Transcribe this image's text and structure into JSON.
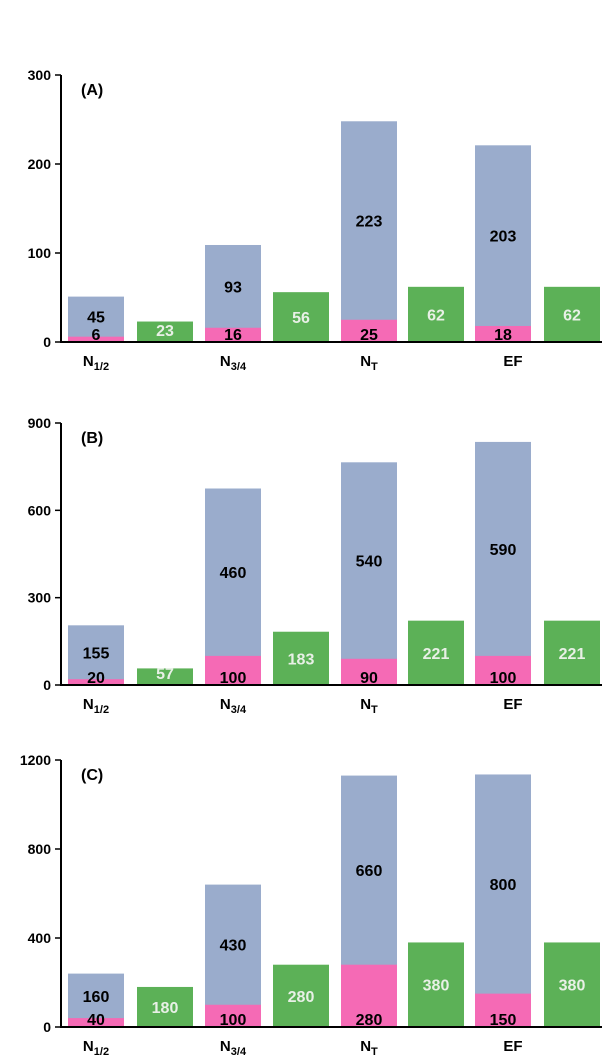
{
  "colors": {
    "total": "#9aaccc",
    "bottom": "#f56ab5",
    "green": "#5cb157",
    "axis": "#000000",
    "lightText": "#e8f0e6",
    "darkText": "#000000"
  },
  "chart_data": [
    {
      "type": "bar",
      "title": "(A)",
      "categories": [
        {
          "main": "N",
          "sub": "1/2"
        },
        {
          "main": "N",
          "sub": "3/4"
        },
        {
          "main": "N",
          "sub": "T"
        },
        {
          "main": "EF",
          "sub": ""
        }
      ],
      "yticks": [
        "0",
        "100",
        "200",
        "300"
      ],
      "ylim": [
        0,
        300
      ],
      "series": [
        {
          "values": [
            45,
            93,
            223,
            203
          ],
          "labels": [
            "45",
            "93",
            "223",
            "203"
          ]
        },
        {
          "values": [
            6,
            16,
            25,
            18
          ],
          "labels": [
            "6",
            "16",
            "25",
            "18"
          ]
        },
        {
          "values": [
            23,
            56,
            62,
            62
          ],
          "labels": [
            "23",
            "56",
            "62",
            "62"
          ]
        }
      ],
      "bar_tops": [
        51,
        109,
        248,
        221
      ]
    },
    {
      "type": "bar",
      "title": "(B)",
      "categories": [
        {
          "main": "N",
          "sub": "1/2"
        },
        {
          "main": "N",
          "sub": "3/4"
        },
        {
          "main": "N",
          "sub": "T"
        },
        {
          "main": "EF",
          "sub": ""
        }
      ],
      "yticks": [
        "0",
        "300",
        "600",
        "900"
      ],
      "ylim": [
        0,
        900
      ],
      "series": [
        {
          "values": [
            155,
            460,
            540,
            590
          ],
          "labels": [
            "155",
            "460",
            "540",
            "590"
          ]
        },
        {
          "values": [
            20,
            100,
            90,
            100
          ],
          "labels": [
            "20",
            "100",
            "90",
            "100"
          ]
        },
        {
          "values": [
            57,
            183,
            221,
            221
          ],
          "labels": [
            "57",
            "183",
            "221",
            "221"
          ]
        }
      ],
      "bar_tops": [
        205,
        675,
        765,
        835
      ]
    },
    {
      "type": "bar",
      "title": "(C)",
      "categories": [
        {
          "main": "N",
          "sub": "1/2"
        },
        {
          "main": "N",
          "sub": "3/4"
        },
        {
          "main": "N",
          "sub": "T"
        },
        {
          "main": "EF",
          "sub": ""
        }
      ],
      "yticks": [
        "0",
        "400",
        "800",
        "1200"
      ],
      "ylim": [
        0,
        1200
      ],
      "series": [
        {
          "values": [
            160,
            430,
            660,
            800
          ],
          "labels": [
            "160",
            "430",
            "660",
            "800"
          ]
        },
        {
          "values": [
            40,
            100,
            280,
            150
          ],
          "labels": [
            "40",
            "100",
            "280",
            "150"
          ]
        },
        {
          "values": [
            180,
            280,
            380,
            380
          ],
          "labels": [
            "180",
            "280",
            "380",
            "380"
          ]
        }
      ],
      "bar_tops": [
        240,
        640,
        1130,
        1135
      ]
    }
  ]
}
